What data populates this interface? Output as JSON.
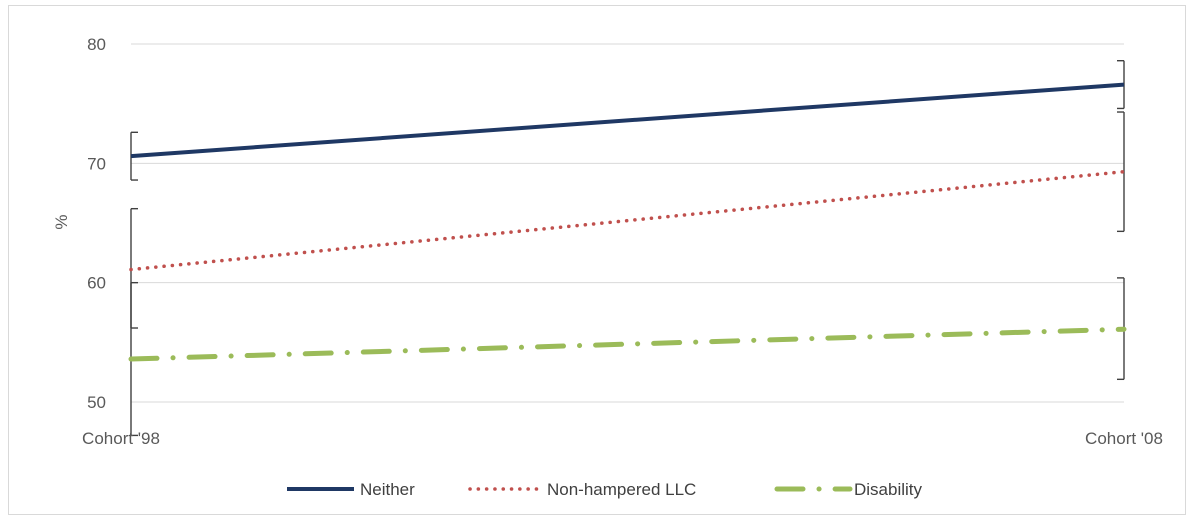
{
  "chart_data": {
    "type": "line",
    "categories": [
      "Cohort '98",
      "Cohort '08"
    ],
    "ylabel": "%",
    "ylim": [
      50,
      80
    ],
    "yticks": [
      50,
      60,
      70,
      80
    ],
    "grid": true,
    "legend_position": "bottom",
    "series": [
      {
        "name": "Neither",
        "values": [
          70.6,
          76.6
        ],
        "error_low": [
          68.6,
          74.6
        ],
        "error_high": [
          72.6,
          78.6
        ],
        "color": "#1f3864",
        "style": "solid"
      },
      {
        "name": "Non-hampered LLC",
        "values": [
          61.1,
          69.3
        ],
        "error_low": [
          56.2,
          64.3
        ],
        "error_high": [
          66.2,
          74.3
        ],
        "color": "#c0504d",
        "style": "dotted"
      },
      {
        "name": "Disability",
        "values": [
          53.6,
          56.1
        ],
        "error_low": [
          47.2,
          51.9
        ],
        "error_high": [
          60.0,
          60.4
        ],
        "color": "#9bbb59",
        "style": "dash-dot"
      }
    ]
  }
}
